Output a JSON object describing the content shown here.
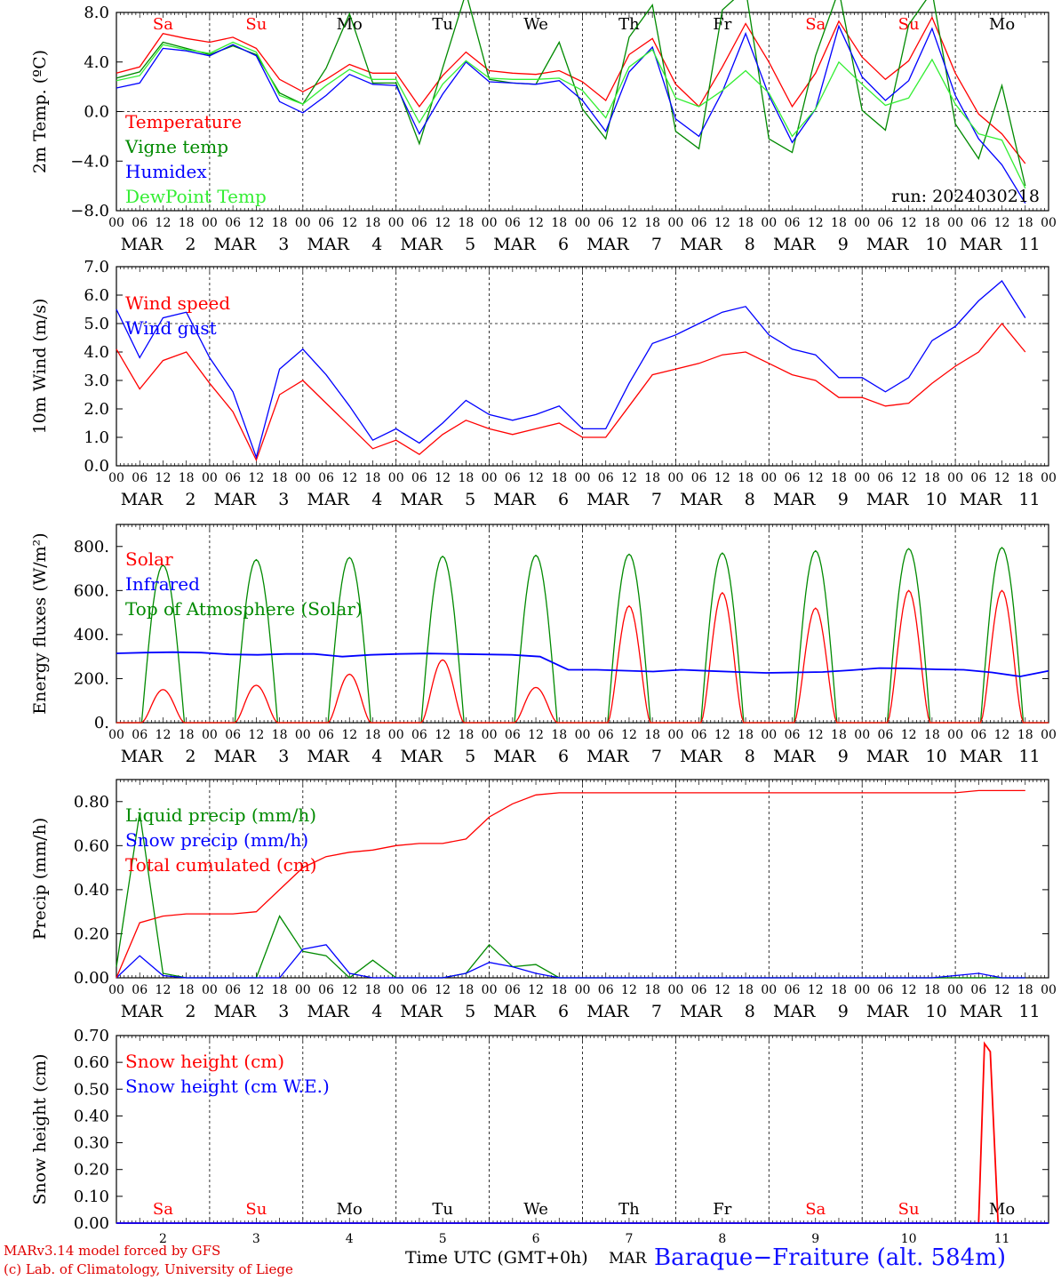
{
  "colors": {
    "red": "#ff0000",
    "green": "#008a00",
    "blue": "#0000ff",
    "lightgreen": "#33ee33",
    "axis": "#000000"
  },
  "days": [
    "Sa",
    "Su",
    "Mo",
    "Tu",
    "We",
    "Th",
    "Fr",
    "Sa",
    "Su",
    "Mo"
  ],
  "weekend_flags": [
    true,
    true,
    false,
    false,
    false,
    false,
    false,
    true,
    true,
    false
  ],
  "hour_ticks": [
    "00",
    "06",
    "12",
    "18"
  ],
  "date_labels": [
    {
      "month": "MAR",
      "day": "2"
    },
    {
      "month": "MAR",
      "day": "3"
    },
    {
      "month": "MAR",
      "day": "4"
    },
    {
      "month": "MAR",
      "day": "5"
    },
    {
      "month": "MAR",
      "day": "6"
    },
    {
      "month": "MAR",
      "day": "7"
    },
    {
      "month": "MAR",
      "day": "8"
    },
    {
      "month": "MAR",
      "day": "9"
    },
    {
      "month": "MAR",
      "day": "10"
    },
    {
      "month": "MAR",
      "day": "11"
    }
  ],
  "bottom_day_numbers": [
    "2",
    "3",
    "4",
    "5",
    "6",
    "7",
    "8",
    "9",
    "10",
    "11"
  ],
  "footer": {
    "model_line": "MARv3.14 model forced by GFS",
    "copyright_line": "(c) Lab. of Climatology, University of Liege",
    "xlabel": "Time UTC (GMT+0h)",
    "month": "MAR",
    "station": "Baraque−Fraiture (alt. 584m)"
  },
  "chart_data": [
    {
      "type": "line",
      "ylabel": "2m Temp. (ºC)",
      "ylim": [
        -8,
        8
      ],
      "yticks": [
        "8.0",
        "4.0",
        "0.0",
        "−4.0",
        "−8.0"
      ],
      "ytick_values": [
        8,
        4,
        0,
        -4,
        -8
      ],
      "reference_line": 0,
      "annotation": "run: 2024030218",
      "x_hours": [
        0,
        6,
        12,
        18,
        24,
        30,
        36,
        42,
        48,
        54,
        60,
        66,
        72,
        78,
        84,
        90,
        96,
        102,
        108,
        114,
        120,
        126,
        132,
        138,
        144,
        150,
        156,
        162,
        168,
        174,
        180,
        186,
        192,
        198,
        204,
        210,
        216,
        222,
        228,
        234
      ],
      "series": [
        {
          "name": "Temperature",
          "color": "red",
          "values": [
            3.1,
            3.6,
            6.3,
            5.9,
            5.6,
            6.0,
            5.1,
            2.6,
            1.6,
            2.6,
            3.8,
            3.1,
            3.1,
            0.4,
            2.9,
            4.8,
            3.3,
            3.1,
            3.0,
            3.3,
            2.4,
            0.9,
            4.6,
            5.9,
            2.2,
            0.4,
            3.6,
            7.1,
            4.0,
            0.4,
            3.1,
            7.3,
            4.4,
            2.6,
            4.1,
            7.6,
            3.1,
            -0.2,
            -1.8,
            -4.2
          ]
        },
        {
          "name": "Vigne temp",
          "color": "green",
          "values": [
            2.7,
            3.2,
            5.6,
            5.1,
            4.6,
            5.3,
            4.6,
            1.5,
            0.6,
            3.5,
            7.9,
            2.3,
            2.3,
            -2.6,
            3.5,
            9.6,
            2.6,
            2.3,
            2.2,
            5.6,
            0.2,
            -2.2,
            6.0,
            8.6,
            -1.6,
            -3.0,
            8.2,
            9.9,
            -2.2,
            -3.3,
            4.5,
            9.8,
            0.1,
            -1.5,
            7.0,
            9.7,
            -1.0,
            -3.8,
            2.1,
            -6.0
          ]
        },
        {
          "name": "Humidex",
          "color": "blue",
          "values": [
            1.9,
            2.3,
            5.1,
            4.9,
            4.5,
            5.4,
            4.5,
            0.8,
            -0.1,
            1.3,
            3.0,
            2.2,
            2.1,
            -1.8,
            1.4,
            4.0,
            2.4,
            2.3,
            2.2,
            2.5,
            0.9,
            -1.6,
            3.2,
            5.2,
            -0.6,
            -2.0,
            1.6,
            6.3,
            1.3,
            -2.5,
            0.2,
            6.9,
            2.8,
            0.9,
            2.5,
            6.7,
            1.3,
            -2.2,
            -4.3,
            -7.4
          ]
        },
        {
          "name": "DewPoint Temp",
          "color": "lightgreen",
          "values": [
            2.5,
            2.9,
            5.4,
            5.0,
            4.7,
            5.6,
            4.8,
            1.3,
            0.6,
            2.1,
            3.4,
            2.6,
            2.6,
            -0.9,
            2.2,
            4.1,
            2.7,
            2.6,
            2.6,
            2.7,
            1.7,
            -0.5,
            3.6,
            5.0,
            1.1,
            0.4,
            1.7,
            3.3,
            1.5,
            -2.0,
            0.2,
            4.0,
            2.2,
            0.5,
            1.1,
            4.2,
            0.6,
            -1.8,
            -2.3,
            -6.2
          ]
        }
      ]
    },
    {
      "type": "line",
      "ylabel": "10m Wind (m/s)",
      "ylim": [
        0,
        7
      ],
      "yticks": [
        "7.0",
        "6.0",
        "5.0",
        "4.0",
        "3.0",
        "2.0",
        "1.0",
        "0.0"
      ],
      "ytick_values": [
        7,
        6,
        5,
        4,
        3,
        2,
        1,
        0
      ],
      "reference_line": 5,
      "x_hours": [
        0,
        6,
        12,
        18,
        24,
        30,
        36,
        42,
        48,
        54,
        60,
        66,
        72,
        78,
        84,
        90,
        96,
        102,
        108,
        114,
        120,
        126,
        132,
        138,
        144,
        150,
        156,
        162,
        168,
        174,
        180,
        186,
        192,
        198,
        204,
        210,
        216,
        222,
        228,
        234
      ],
      "series": [
        {
          "name": "Wind speed",
          "color": "red",
          "values": [
            4.1,
            2.7,
            3.7,
            4.0,
            2.9,
            1.9,
            0.2,
            2.5,
            3.0,
            2.2,
            1.4,
            0.6,
            0.9,
            0.4,
            1.1,
            1.6,
            1.3,
            1.1,
            1.3,
            1.5,
            1.0,
            1.0,
            2.1,
            3.2,
            3.4,
            3.6,
            3.9,
            4.0,
            3.6,
            3.2,
            3.0,
            2.4,
            2.4,
            2.1,
            2.2,
            2.9,
            3.5,
            4.0,
            5.0,
            4.0
          ]
        },
        {
          "name": "Wind gust",
          "color": "blue",
          "values": [
            5.5,
            3.8,
            5.2,
            5.4,
            3.8,
            2.6,
            0.3,
            3.4,
            4.1,
            3.2,
            2.1,
            0.9,
            1.3,
            0.8,
            1.5,
            2.3,
            1.8,
            1.6,
            1.8,
            2.1,
            1.3,
            1.3,
            2.9,
            4.3,
            4.6,
            5.0,
            5.4,
            5.6,
            4.6,
            4.1,
            3.9,
            3.1,
            3.1,
            2.6,
            3.1,
            4.4,
            4.9,
            5.8,
            6.5,
            5.2
          ]
        }
      ]
    },
    {
      "type": "line",
      "ylabel": "Energy fluxes (W/m²)",
      "ylim": [
        0,
        900
      ],
      "yticks": [
        "800.",
        "600.",
        "400.",
        "200.",
        "0."
      ],
      "ytick_values": [
        800,
        600,
        400,
        200,
        0
      ],
      "toa_peaks": [
        715,
        740,
        750,
        755,
        760,
        765,
        770,
        780,
        790,
        795
      ],
      "solar_peaks": [
        150,
        170,
        220,
        285,
        160,
        530,
        590,
        520,
        600,
        600
      ],
      "infrared_values": [
        315,
        318,
        320,
        318,
        310,
        308,
        312,
        312,
        300,
        308,
        312,
        314,
        312,
        310,
        308,
        300,
        240,
        240,
        236,
        232,
        240,
        235,
        230,
        226,
        228,
        230,
        238,
        248,
        246,
        242,
        240,
        228,
        210,
        235
      ],
      "series": [
        {
          "name": "Solar",
          "color": "red"
        },
        {
          "name": "Infrared",
          "color": "blue"
        },
        {
          "name": "Top of Atmosphere (Solar)",
          "color": "green"
        }
      ]
    },
    {
      "type": "line",
      "ylabel": "Precip (mm/h)",
      "ylim": [
        0,
        0.9
      ],
      "yticks": [
        "0.80",
        "0.60",
        "0.40",
        "0.20",
        "0.00"
      ],
      "ytick_values": [
        0.8,
        0.6,
        0.4,
        0.2,
        0
      ],
      "x_hours": [
        0,
        6,
        12,
        18,
        24,
        30,
        36,
        42,
        48,
        54,
        60,
        66,
        72,
        78,
        84,
        90,
        96,
        102,
        108,
        114,
        120,
        126,
        132,
        138,
        144,
        150,
        156,
        162,
        168,
        174,
        180,
        186,
        192,
        198,
        204,
        210,
        216,
        222,
        228,
        234
      ],
      "series": [
        {
          "name": "Liquid precip (mm/h)",
          "color": "green",
          "values": [
            0.05,
            0.75,
            0.02,
            0.0,
            0.0,
            0.0,
            0.0,
            0.28,
            0.12,
            0.1,
            0.0,
            0.08,
            0.0,
            0.0,
            0.0,
            0.02,
            0.15,
            0.05,
            0.06,
            0.0,
            0.0,
            0.0,
            0.0,
            0.0,
            0.0,
            0.0,
            0.0,
            0.0,
            0.0,
            0.0,
            0.0,
            0.0,
            0.0,
            0.0,
            0.0,
            0.0,
            0.0,
            0.0,
            0.0,
            0.0
          ]
        },
        {
          "name": "Snow precip (mm/h)",
          "color": "blue",
          "values": [
            0.0,
            0.1,
            0.01,
            0.0,
            0.0,
            0.0,
            0.0,
            0.0,
            0.13,
            0.15,
            0.02,
            0.0,
            0.0,
            0.0,
            0.0,
            0.02,
            0.07,
            0.05,
            0.02,
            0.0,
            0.0,
            0.0,
            0.0,
            0.0,
            0.0,
            0.0,
            0.0,
            0.0,
            0.0,
            0.0,
            0.0,
            0.0,
            0.0,
            0.0,
            0.0,
            0.0,
            0.01,
            0.02,
            0.0,
            0.0
          ]
        },
        {
          "name": "Total cumulated (cm)",
          "color": "red",
          "values": [
            0.0,
            0.25,
            0.28,
            0.29,
            0.29,
            0.29,
            0.3,
            0.4,
            0.5,
            0.55,
            0.57,
            0.58,
            0.6,
            0.61,
            0.61,
            0.63,
            0.73,
            0.79,
            0.83,
            0.84,
            0.84,
            0.84,
            0.84,
            0.84,
            0.84,
            0.84,
            0.84,
            0.84,
            0.84,
            0.84,
            0.84,
            0.84,
            0.84,
            0.84,
            0.84,
            0.84,
            0.84,
            0.85,
            0.85,
            0.85
          ]
        }
      ]
    },
    {
      "type": "line",
      "ylabel": "Snow height (cm)",
      "ylim": [
        0,
        0.7
      ],
      "yticks": [
        "0.70",
        "0.60",
        "0.50",
        "0.40",
        "0.30",
        "0.20",
        "0.10",
        "0.00"
      ],
      "ytick_values": [
        0.7,
        0.6,
        0.5,
        0.4,
        0.3,
        0.2,
        0.1,
        0
      ],
      "series": [
        {
          "name": "Snow height (cm)",
          "color": "red",
          "points": [
            [
              0,
              0
            ],
            [
              222,
              0
            ],
            [
              223.5,
              0.67
            ],
            [
              225,
              0.64
            ],
            [
              227,
              0
            ],
            [
              240,
              0
            ]
          ]
        },
        {
          "name": "Snow height (cm W.E.)",
          "color": "blue",
          "points": [
            [
              0,
              0
            ],
            [
              240,
              0
            ]
          ]
        }
      ]
    }
  ]
}
